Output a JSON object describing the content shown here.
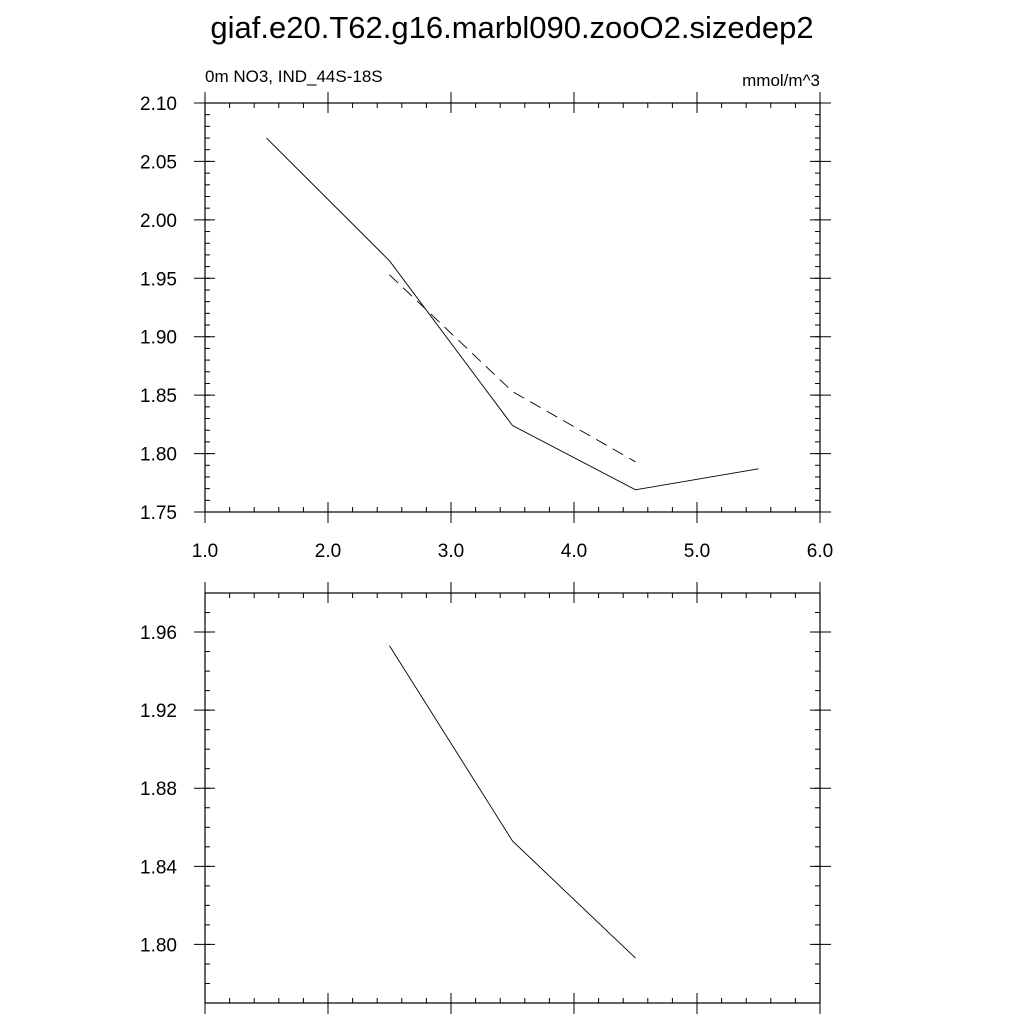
{
  "title": "giaf.e20.T62.g16.marbl090.zooO2.sizedep2",
  "chart_data": [
    {
      "type": "line",
      "left_label": "0m NO3, IND_44S-18S",
      "right_label": "mmol/m^3",
      "xlim": [
        1.0,
        6.0
      ],
      "ylim": [
        1.75,
        2.1
      ],
      "xticks": [
        "1.0",
        "2.0",
        "3.0",
        "4.0",
        "5.0",
        "6.0"
      ],
      "yticks": [
        "1.75",
        "1.80",
        "1.85",
        "1.90",
        "1.95",
        "2.00",
        "2.05",
        "2.10"
      ],
      "series": [
        {
          "style": "solid",
          "x": [
            1.5,
            2.5,
            3.5,
            4.5,
            5.5
          ],
          "y": [
            2.07,
            1.965,
            1.824,
            1.769,
            1.787
          ]
        },
        {
          "style": "dashed",
          "x": [
            2.5,
            3.5,
            4.5
          ],
          "y": [
            1.953,
            1.853,
            1.793
          ]
        }
      ],
      "grid": false
    },
    {
      "type": "line",
      "xlim": [
        1.0,
        6.0
      ],
      "ylim": [
        1.77,
        1.98
      ],
      "yticks": [
        "1.80",
        "1.84",
        "1.88",
        "1.92",
        "1.96"
      ],
      "series": [
        {
          "style": "solid",
          "x": [
            2.5,
            3.5,
            4.5
          ],
          "y": [
            1.953,
            1.853,
            1.793
          ]
        }
      ],
      "grid": false
    }
  ]
}
